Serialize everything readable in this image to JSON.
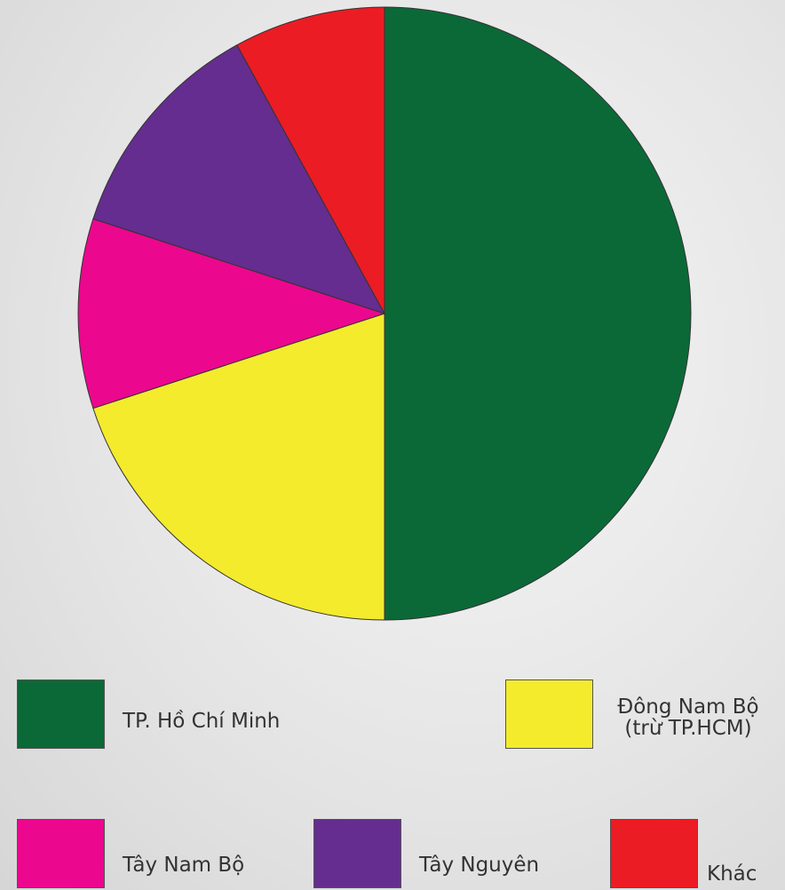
{
  "chart_data": {
    "type": "pie",
    "categories": [
      "TP. Hồ Chí Minh",
      "Đông Nam Bộ\n(trừ TP.HCM)",
      "Tây Nam Bộ",
      "Tây Nguyên",
      "Khác"
    ],
    "values": [
      50,
      20,
      10,
      12,
      8
    ],
    "colors": [
      "#0b6937",
      "#f4eb2d",
      "#ec078f",
      "#652d8f",
      "#ec1c24"
    ]
  }
}
